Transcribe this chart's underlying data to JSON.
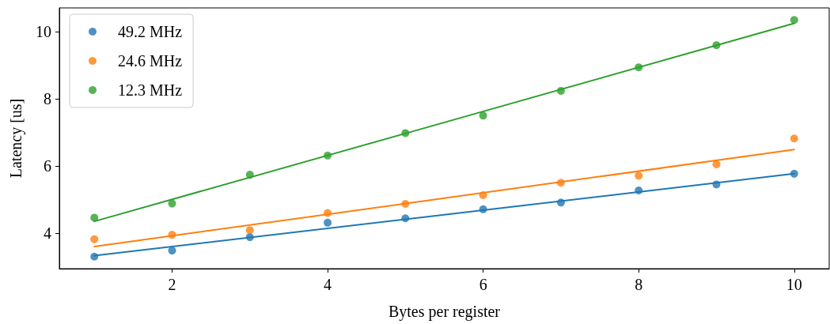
{
  "chart_data": {
    "type": "scatter",
    "xlabel": "Bytes per register",
    "ylabel": "Latency [us]",
    "x": [
      1,
      2,
      3,
      4,
      5,
      6,
      7,
      8,
      9,
      10
    ],
    "series": [
      {
        "name": "49.2 MHz",
        "color": "#1f77b4",
        "values": [
          3.3,
          3.48,
          3.88,
          4.31,
          4.44,
          4.71,
          4.91,
          5.27,
          5.45,
          5.77
        ]
      },
      {
        "name": "24.6 MHz",
        "color": "#ff7f0e",
        "values": [
          3.82,
          3.95,
          4.09,
          4.6,
          4.87,
          5.13,
          5.5,
          5.71,
          6.05,
          6.82
        ]
      },
      {
        "name": "12.3 MHz",
        "color": "#2ca02c",
        "values": [
          4.46,
          4.88,
          5.74,
          6.31,
          6.98,
          7.5,
          8.24,
          8.94,
          9.6,
          10.35
        ]
      },
      {
        "type": "line",
        "color": "#1f77b4",
        "marker": "none",
        "x": [
          1,
          5,
          10
        ],
        "values": [
          3.33,
          4.41,
          5.77
        ]
      },
      {
        "type": "line",
        "color": "#ff7f0e",
        "marker": "none",
        "x": [
          1,
          5,
          10
        ],
        "values": [
          3.6,
          4.88,
          6.49
        ]
      },
      {
        "type": "line",
        "color": "#2ca02c",
        "marker": "none",
        "x": [
          1,
          5,
          10
        ],
        "values": [
          4.35,
          6.97,
          10.25
        ]
      }
    ],
    "xlim": [
      0.55,
      10.45
    ],
    "xticks": [
      2,
      4,
      6,
      8,
      10
    ],
    "ylim": [
      2.94,
      10.71
    ],
    "yticks": [
      4,
      6,
      8,
      10
    ],
    "grid": false,
    "legend": "top left",
    "marker": "circle",
    "line_style": "solid"
  }
}
